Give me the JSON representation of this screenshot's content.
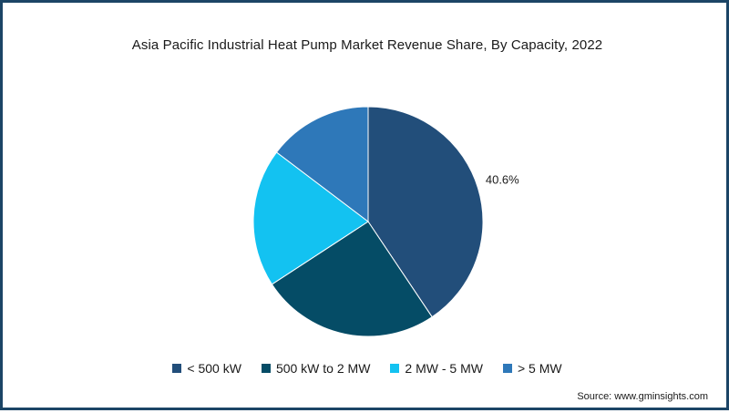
{
  "chart_data": {
    "type": "pie",
    "title": "Asia Pacific Industrial Heat Pump Market Revenue Share, By Capacity, 2022",
    "series": [
      {
        "name": "< 500 kW",
        "value": 40.6,
        "color": "#224e7a",
        "label": "40.6%"
      },
      {
        "name": "500 kW to 2 MW",
        "value": 25.2,
        "color": "#054c66",
        "label": ""
      },
      {
        "name": "2 MW - 5 MW",
        "value": 19.5,
        "color": "#13c2f1",
        "label": ""
      },
      {
        "name": "> 5 MW",
        "value": 14.7,
        "color": "#2e78b9",
        "label": ""
      }
    ],
    "legend_position": "bottom"
  },
  "source": "Source: www.gminsights.com",
  "colors": {
    "border": "#1c4566",
    "background": "#ffffff"
  }
}
